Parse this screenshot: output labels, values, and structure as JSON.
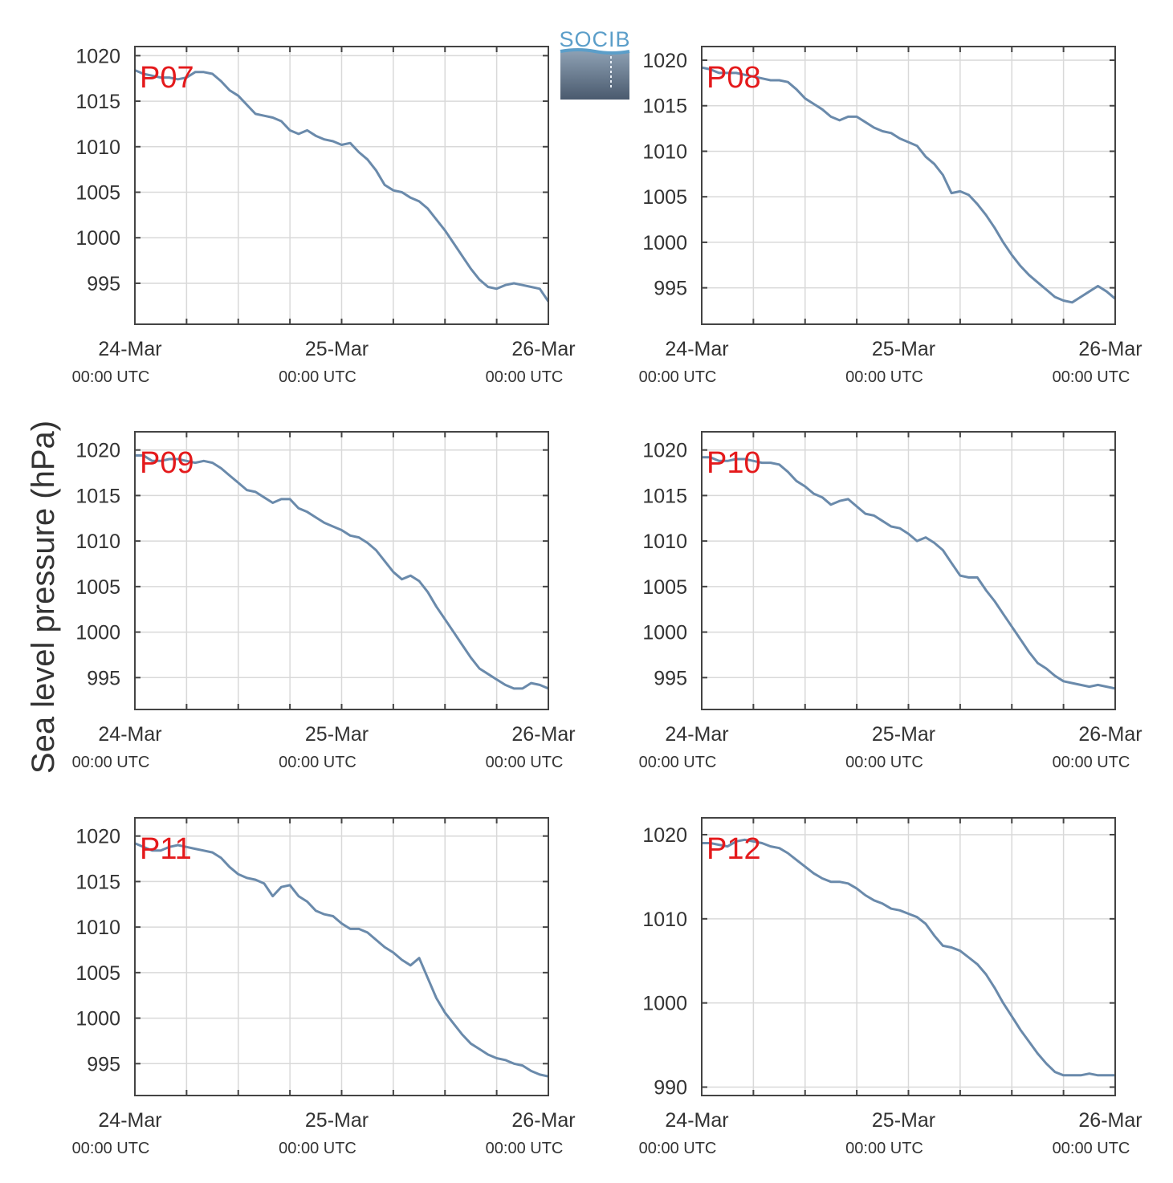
{
  "figure": {
    "ylabel": "Sea level pressure (hPa)",
    "logo": {
      "text": "SOCIB"
    },
    "colors": {
      "line": "#6a8aab",
      "label": "#e41a1c",
      "grid": "#d9d9d9",
      "axis": "#444444",
      "text": "#333333"
    }
  },
  "chart_data": [
    {
      "type": "line",
      "panel": "P07",
      "xlabel": "",
      "ylabel": "Sea level pressure (hPa)",
      "x_ticks": [
        {
          "date": "24-Mar",
          "time": "00:00 UTC"
        },
        {
          "date": "25-Mar",
          "time": "00:00 UTC"
        },
        {
          "date": "26-Mar",
          "time": "00:00 UTC"
        }
      ],
      "xlim": [
        0,
        48
      ],
      "ylim": [
        990.5,
        1021
      ],
      "y_ticks": [
        995,
        1000,
        1005,
        1010,
        1015,
        1020
      ],
      "grid": true,
      "series": [
        {
          "x": [
            0,
            1,
            2,
            3,
            4,
            5,
            6,
            7,
            8,
            9,
            10,
            11,
            12,
            13,
            14,
            15,
            16,
            17,
            18,
            19,
            20,
            21,
            22,
            23,
            24,
            25,
            26,
            27,
            28,
            29,
            30,
            31,
            32,
            33,
            34,
            35,
            36,
            37,
            38,
            39,
            40,
            41,
            42,
            43,
            44,
            45,
            46,
            47,
            48
          ],
          "y": [
            1018.4,
            1018.0,
            1017.8,
            1017.6,
            1017.6,
            1017.4,
            1017.6,
            1018.2,
            1018.2,
            1018.0,
            1017.2,
            1016.2,
            1015.6,
            1014.6,
            1013.6,
            1013.4,
            1013.2,
            1012.8,
            1011.8,
            1011.4,
            1011.8,
            1011.2,
            1010.8,
            1010.6,
            1010.2,
            1010.4,
            1009.4,
            1008.6,
            1007.4,
            1005.8,
            1005.2,
            1005.0,
            1004.4,
            1004.0,
            1003.2,
            1002.0,
            1000.8,
            999.4,
            998.0,
            996.6,
            995.4,
            994.6,
            994.4,
            994.8,
            995.0,
            994.8,
            994.6,
            994.4,
            993.0
          ]
        }
      ]
    },
    {
      "type": "line",
      "panel": "P08",
      "xlabel": "",
      "ylabel": "Sea level pressure (hPa)",
      "x_ticks": [
        {
          "date": "24-Mar",
          "time": "00:00 UTC"
        },
        {
          "date": "25-Mar",
          "time": "00:00 UTC"
        },
        {
          "date": "26-Mar",
          "time": "00:00 UTC"
        }
      ],
      "xlim": [
        0,
        48
      ],
      "ylim": [
        991,
        1021.5
      ],
      "y_ticks": [
        995,
        1000,
        1005,
        1010,
        1015,
        1020
      ],
      "grid": true,
      "series": [
        {
          "x": [
            0,
            1,
            2,
            3,
            4,
            5,
            6,
            7,
            8,
            9,
            10,
            11,
            12,
            13,
            14,
            15,
            16,
            17,
            18,
            19,
            20,
            21,
            22,
            23,
            24,
            25,
            26,
            27,
            28,
            29,
            30,
            31,
            32,
            33,
            34,
            35,
            36,
            37,
            38,
            39,
            40,
            41,
            42,
            43,
            44,
            45,
            46,
            47,
            48
          ],
          "y": [
            1019.2,
            1019.0,
            1018.6,
            1018.6,
            1018.6,
            1018.4,
            1018.2,
            1018.0,
            1017.8,
            1017.8,
            1017.6,
            1016.8,
            1015.8,
            1015.2,
            1014.6,
            1013.8,
            1013.4,
            1013.8,
            1013.8,
            1013.2,
            1012.6,
            1012.2,
            1012.0,
            1011.4,
            1011.0,
            1010.6,
            1009.4,
            1008.6,
            1007.4,
            1005.4,
            1005.6,
            1005.2,
            1004.2,
            1003.0,
            1001.6,
            1000.0,
            998.6,
            997.4,
            996.4,
            995.6,
            994.8,
            994.0,
            993.6,
            993.4,
            994.0,
            994.6,
            995.2,
            994.6,
            993.8
          ]
        }
      ]
    },
    {
      "type": "line",
      "panel": "P09",
      "xlabel": "",
      "ylabel": "Sea level pressure (hPa)",
      "x_ticks": [
        {
          "date": "24-Mar",
          "time": "00:00 UTC"
        },
        {
          "date": "25-Mar",
          "time": "00:00 UTC"
        },
        {
          "date": "26-Mar",
          "time": "00:00 UTC"
        }
      ],
      "xlim": [
        0,
        48
      ],
      "ylim": [
        991.5,
        1022
      ],
      "y_ticks": [
        995,
        1000,
        1005,
        1010,
        1015,
        1020
      ],
      "grid": true,
      "series": [
        {
          "x": [
            0,
            1,
            2,
            3,
            4,
            5,
            6,
            7,
            8,
            9,
            10,
            11,
            12,
            13,
            14,
            15,
            16,
            17,
            18,
            19,
            20,
            21,
            22,
            23,
            24,
            25,
            26,
            27,
            28,
            29,
            30,
            31,
            32,
            33,
            34,
            35,
            36,
            37,
            38,
            39,
            40,
            41,
            42,
            43,
            44,
            45,
            46,
            47,
            48
          ],
          "y": [
            1019.4,
            1019.4,
            1018.8,
            1018.8,
            1019.0,
            1019.0,
            1018.8,
            1018.6,
            1018.8,
            1018.6,
            1018.0,
            1017.2,
            1016.4,
            1015.6,
            1015.4,
            1014.8,
            1014.2,
            1014.6,
            1014.6,
            1013.6,
            1013.2,
            1012.6,
            1012.0,
            1011.6,
            1011.2,
            1010.6,
            1010.4,
            1009.8,
            1009.0,
            1007.8,
            1006.6,
            1005.8,
            1006.2,
            1005.6,
            1004.4,
            1002.8,
            1001.4,
            1000.0,
            998.6,
            997.2,
            996.0,
            995.4,
            994.8,
            994.2,
            993.8,
            993.8,
            994.4,
            994.2,
            993.8
          ]
        }
      ]
    },
    {
      "type": "line",
      "panel": "P10",
      "xlabel": "",
      "ylabel": "Sea level pressure (hPa)",
      "x_ticks": [
        {
          "date": "24-Mar",
          "time": "00:00 UTC"
        },
        {
          "date": "25-Mar",
          "time": "00:00 UTC"
        },
        {
          "date": "26-Mar",
          "time": "00:00 UTC"
        }
      ],
      "xlim": [
        0,
        48
      ],
      "ylim": [
        991.5,
        1022
      ],
      "y_ticks": [
        995,
        1000,
        1005,
        1010,
        1015,
        1020
      ],
      "grid": true,
      "series": [
        {
          "x": [
            0,
            1,
            2,
            3,
            4,
            5,
            6,
            7,
            8,
            9,
            10,
            11,
            12,
            13,
            14,
            15,
            16,
            17,
            18,
            19,
            20,
            21,
            22,
            23,
            24,
            25,
            26,
            27,
            28,
            29,
            30,
            31,
            32,
            33,
            34,
            35,
            36,
            37,
            38,
            39,
            40,
            41,
            42,
            43,
            44,
            45,
            46,
            47,
            48
          ],
          "y": [
            1019.2,
            1019.2,
            1018.8,
            1018.8,
            1019.0,
            1019.0,
            1018.8,
            1018.6,
            1018.6,
            1018.4,
            1017.6,
            1016.6,
            1016.0,
            1015.2,
            1014.8,
            1014.0,
            1014.4,
            1014.6,
            1013.8,
            1013.0,
            1012.8,
            1012.2,
            1011.6,
            1011.4,
            1010.8,
            1010.0,
            1010.4,
            1009.8,
            1009.0,
            1007.6,
            1006.2,
            1006.0,
            1006.0,
            1004.6,
            1003.4,
            1002.0,
            1000.6,
            999.2,
            997.8,
            996.6,
            996.0,
            995.2,
            994.6,
            994.4,
            994.2,
            994.0,
            994.2,
            994.0,
            993.8
          ]
        }
      ]
    },
    {
      "type": "line",
      "panel": "P11",
      "xlabel": "",
      "ylabel": "Sea level pressure (hPa)",
      "x_ticks": [
        {
          "date": "24-Mar",
          "time": "00:00 UTC"
        },
        {
          "date": "25-Mar",
          "time": "00:00 UTC"
        },
        {
          "date": "26-Mar",
          "time": "00:00 UTC"
        }
      ],
      "xlim": [
        0,
        48
      ],
      "ylim": [
        991.5,
        1022
      ],
      "y_ticks": [
        995,
        1000,
        1005,
        1010,
        1015,
        1020
      ],
      "grid": true,
      "series": [
        {
          "x": [
            0,
            1,
            2,
            3,
            4,
            5,
            6,
            7,
            8,
            9,
            10,
            11,
            12,
            13,
            14,
            15,
            16,
            17,
            18,
            19,
            20,
            21,
            22,
            23,
            24,
            25,
            26,
            27,
            28,
            29,
            30,
            31,
            32,
            33,
            34,
            35,
            36,
            37,
            38,
            39,
            40,
            41,
            42,
            43,
            44,
            45,
            46,
            47,
            48
          ],
          "y": [
            1019.2,
            1018.8,
            1018.4,
            1018.4,
            1018.8,
            1019.0,
            1018.8,
            1018.6,
            1018.4,
            1018.2,
            1017.6,
            1016.6,
            1015.8,
            1015.4,
            1015.2,
            1014.8,
            1013.4,
            1014.4,
            1014.6,
            1013.4,
            1012.8,
            1011.8,
            1011.4,
            1011.2,
            1010.4,
            1009.8,
            1009.8,
            1009.4,
            1008.6,
            1007.8,
            1007.2,
            1006.4,
            1005.8,
            1006.6,
            1004.4,
            1002.2,
            1000.6,
            999.4,
            998.2,
            997.2,
            996.6,
            996.0,
            995.6,
            995.4,
            995.0,
            994.8,
            994.2,
            993.8,
            993.6
          ]
        }
      ]
    },
    {
      "type": "line",
      "panel": "P12",
      "xlabel": "",
      "ylabel": "Sea level pressure (hPa)",
      "x_ticks": [
        {
          "date": "24-Mar",
          "time": "00:00 UTC"
        },
        {
          "date": "25-Mar",
          "time": "00:00 UTC"
        },
        {
          "date": "26-Mar",
          "time": "00:00 UTC"
        }
      ],
      "xlim": [
        0,
        48
      ],
      "ylim": [
        989,
        1022
      ],
      "y_ticks": [
        990,
        1000,
        1010,
        1020
      ],
      "grid": true,
      "series": [
        {
          "x": [
            0,
            1,
            2,
            3,
            4,
            5,
            6,
            7,
            8,
            9,
            10,
            11,
            12,
            13,
            14,
            15,
            16,
            17,
            18,
            19,
            20,
            21,
            22,
            23,
            24,
            25,
            26,
            27,
            28,
            29,
            30,
            31,
            32,
            33,
            34,
            35,
            36,
            37,
            38,
            39,
            40,
            41,
            42,
            43,
            44,
            45,
            46,
            47,
            48
          ],
          "y": [
            1019.0,
            1019.0,
            1018.8,
            1018.6,
            1019.2,
            1019.4,
            1019.2,
            1019.0,
            1018.6,
            1018.4,
            1017.8,
            1017.0,
            1016.2,
            1015.4,
            1014.8,
            1014.4,
            1014.4,
            1014.2,
            1013.6,
            1012.8,
            1012.2,
            1011.8,
            1011.2,
            1011.0,
            1010.6,
            1010.2,
            1009.4,
            1008.0,
            1006.8,
            1006.6,
            1006.2,
            1005.4,
            1004.6,
            1003.4,
            1001.8,
            1000.0,
            998.4,
            996.8,
            995.4,
            994.0,
            992.8,
            991.8,
            991.4,
            991.4,
            991.4,
            991.6,
            991.4,
            991.4,
            991.4
          ]
        }
      ]
    }
  ]
}
